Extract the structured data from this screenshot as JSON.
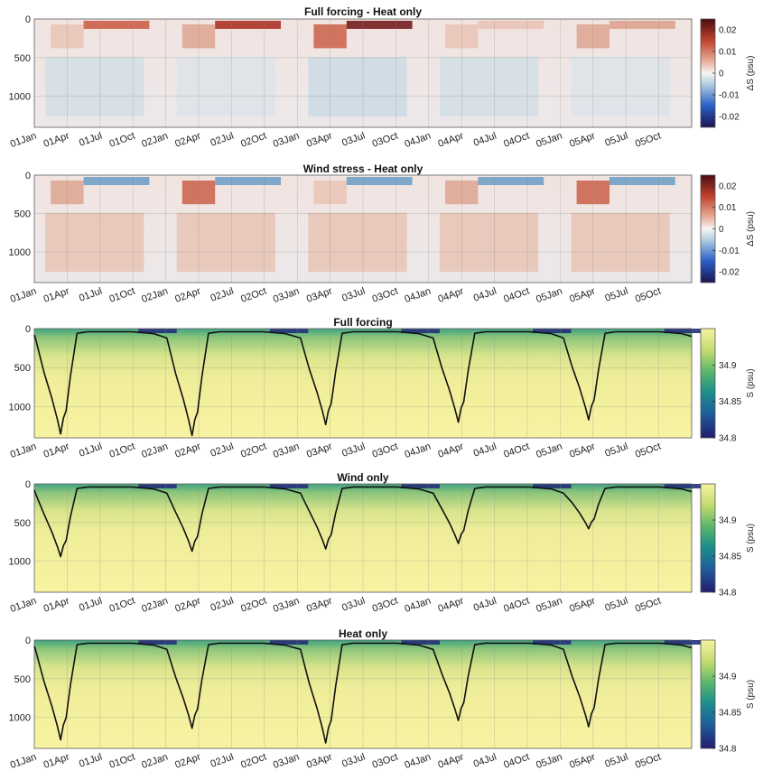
{
  "x_tick_labels": [
    "01Jan",
    "01Apr",
    "01Jul",
    "01Oct",
    "02Jan",
    "02Apr",
    "02Jul",
    "02Oct",
    "03Jan",
    "03Apr",
    "03Jul",
    "03Oct",
    "04Jan",
    "04Apr",
    "04Jul",
    "04Oct",
    "05Jan",
    "05Apr",
    "05Jul",
    "05Oct"
  ],
  "y_tick_labels": [
    "0",
    "500",
    "1000"
  ],
  "chart_data": [
    {
      "type": "heatmap",
      "title": "Full forcing -  Heat only",
      "y_range": [
        0,
        1400
      ],
      "y_reversed": true,
      "colorbar": {
        "label": "ΔS (psu)",
        "ticks": [
          "0.02",
          "0.01",
          "0",
          "-0.01",
          "-0.02"
        ],
        "range": [
          -0.025,
          0.025
        ],
        "colormap": "diverging blue-white-red"
      }
    },
    {
      "type": "heatmap",
      "title": "Wind stress -  Heat only",
      "y_range": [
        0,
        1400
      ],
      "y_reversed": true,
      "colorbar": {
        "label": "ΔS (psu)",
        "ticks": [
          "0.02",
          "0.01",
          "0",
          "-0.01",
          "-0.02"
        ],
        "range": [
          -0.025,
          0.025
        ],
        "colormap": "diverging blue-white-red"
      }
    },
    {
      "type": "heatmap",
      "title": "Full forcing",
      "y_range": [
        0,
        1400
      ],
      "y_reversed": true,
      "colorbar": {
        "label": "S (psu)",
        "ticks": [
          "34.9",
          "34.85",
          "34.8"
        ],
        "range": [
          34.8,
          34.95
        ],
        "colormap": "navy-green-yellow"
      },
      "mixed_layer_peaks_m": [
        1350,
        1370,
        1230,
        1200,
        1170
      ]
    },
    {
      "type": "heatmap",
      "title": "Wind only",
      "y_range": [
        0,
        1400
      ],
      "y_reversed": true,
      "colorbar": {
        "label": "S (psu)",
        "ticks": [
          "34.9",
          "34.85",
          "34.8"
        ],
        "range": [
          34.8,
          34.95
        ],
        "colormap": "navy-green-yellow"
      },
      "mixed_layer_peaks_m": [
        940,
        870,
        840,
        770,
        580
      ]
    },
    {
      "type": "heatmap",
      "title": "Heat only",
      "y_range": [
        0,
        1400
      ],
      "y_reversed": true,
      "colorbar": {
        "label": "S (psu)",
        "ticks": [
          "34.9",
          "34.85",
          "34.8"
        ],
        "range": [
          34.8,
          34.95
        ],
        "colormap": "navy-green-yellow"
      },
      "mixed_layer_peaks_m": [
        1290,
        1140,
        1330,
        1040,
        1120
      ]
    }
  ]
}
